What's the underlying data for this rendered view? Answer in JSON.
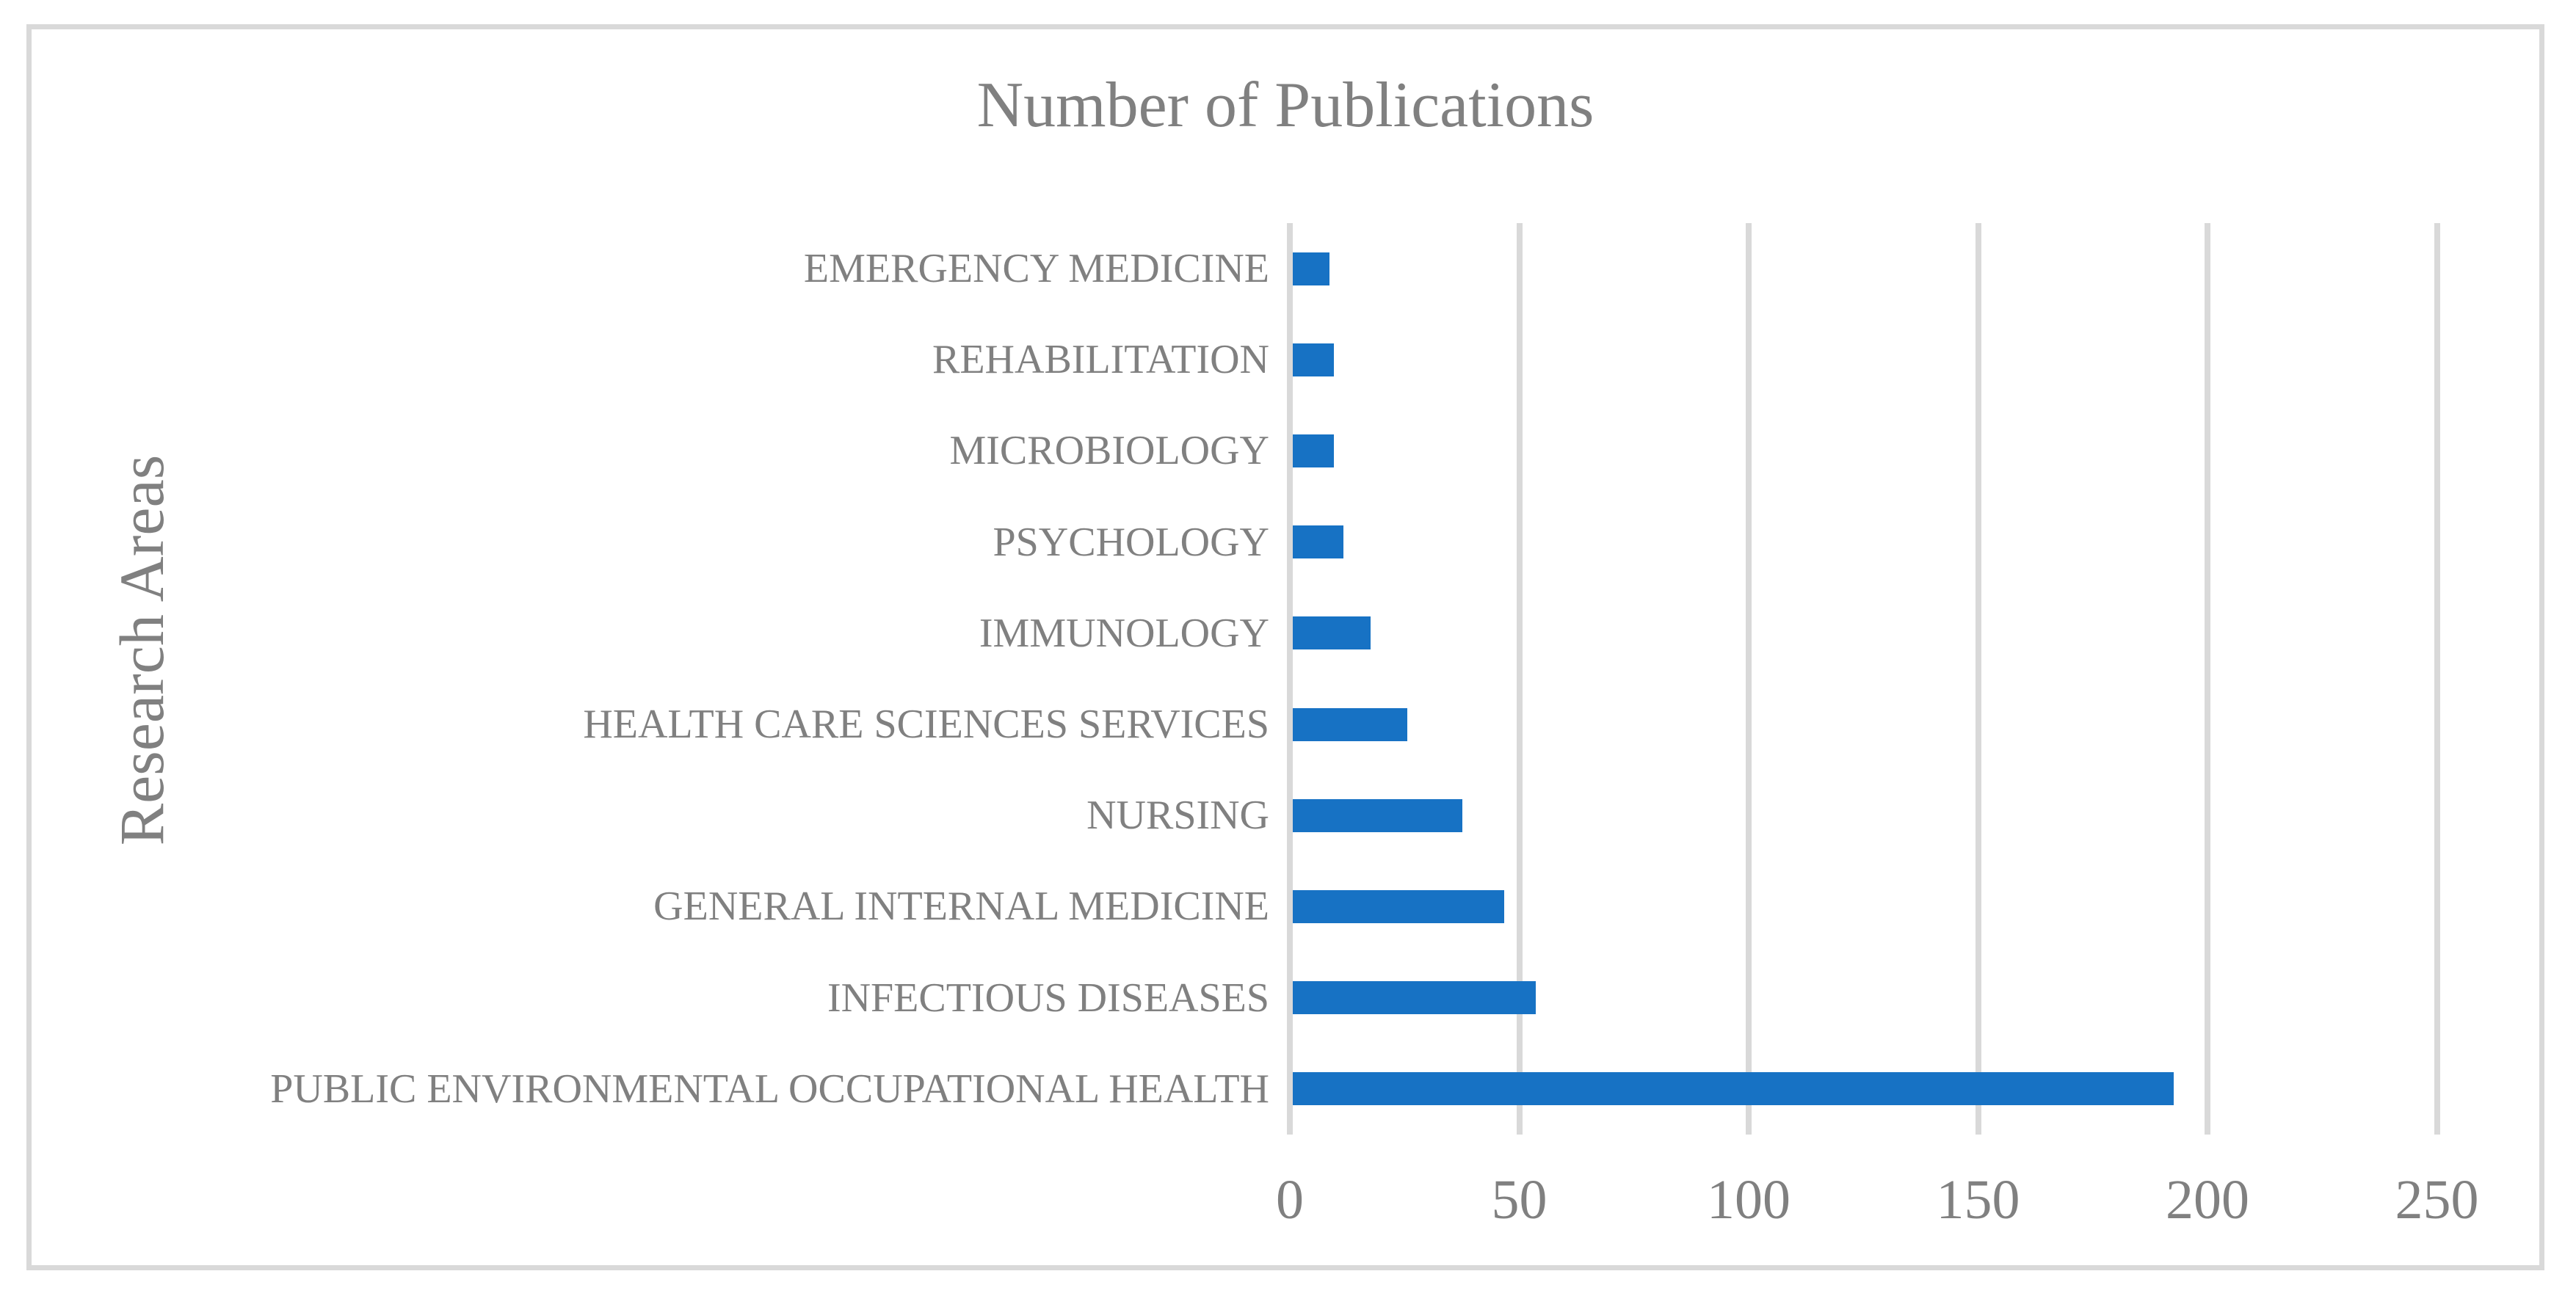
{
  "figure": {
    "title": "Number of Publications",
    "y_axis_title": "Research Areas"
  },
  "colors": {
    "bar": "#1772c4",
    "gridline": "#d9d9d9",
    "border": "#d9d9d9",
    "text": "#808080"
  },
  "chart_data": {
    "type": "bar",
    "orientation": "horizontal",
    "title": "Number of Publications",
    "xlabel": "",
    "ylabel": "Research Areas",
    "categories": [
      "EMERGENCY MEDICINE",
      "REHABILITATION",
      "MICROBIOLOGY",
      "PSYCHOLOGY",
      "IMMUNOLOGY",
      "HEALTH CARE SCIENCES SERVICES",
      "NURSING",
      "GENERAL INTERNAL MEDICINE",
      "INFECTIOUS DISEASES",
      "PUBLIC ENVIRONMENTAL OCCUPATIONAL HEALTH"
    ],
    "values": [
      8,
      9,
      9,
      11,
      17,
      25,
      37,
      46,
      53,
      192
    ],
    "xlim": [
      0,
      250
    ],
    "x_ticks": [
      0,
      50,
      100,
      150,
      200,
      250
    ],
    "grid": "vertical-gridlines-on",
    "legend": "none"
  }
}
